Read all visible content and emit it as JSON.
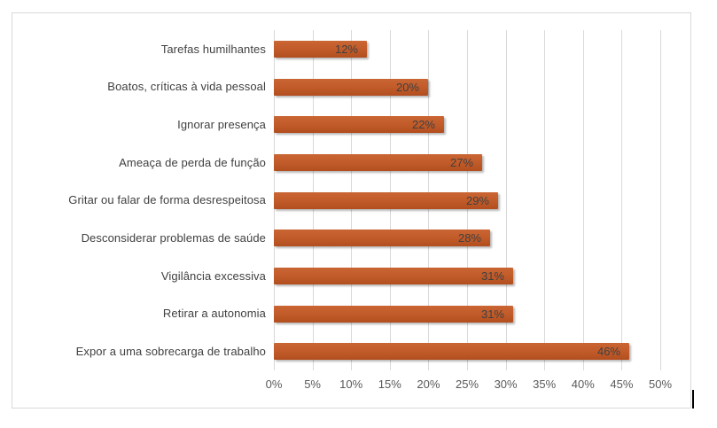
{
  "chart_data": {
    "type": "bar",
    "orientation": "horizontal",
    "title": "",
    "xlabel": "",
    "ylabel": "",
    "categories": [
      "Tarefas humilhantes",
      "Boatos, críticas à vida pessoal",
      "Ignorar presença",
      "Ameaça de perda de função",
      "Gritar ou falar de forma desrespeitosa",
      "Desconsiderar problemas de saúde",
      "Vigilância excessiva",
      "Retirar a autonomia",
      "Expor a uma sobrecarga de trabalho"
    ],
    "values": [
      12,
      20,
      22,
      27,
      29,
      28,
      31,
      31,
      46
    ],
    "data_labels": [
      "12%",
      "20%",
      "22%",
      "27%",
      "29%",
      "28%",
      "31%",
      "31%",
      "46%"
    ],
    "xlim": [
      0,
      50
    ],
    "x_tick_step": 5,
    "x_ticks": [
      "0%",
      "5%",
      "10%",
      "15%",
      "20%",
      "25%",
      "30%",
      "35%",
      "40%",
      "45%",
      "50%"
    ],
    "grid": true,
    "legend": false,
    "colors": {
      "bar_base": "#C05A28",
      "bar_gradient_top": "#CA6634",
      "bar_gradient_bottom": "#B24E1F",
      "gridline": "#D9D9D9",
      "frame_border": "#D9D9D9",
      "category_label": "#404040",
      "data_label": "#404040",
      "axis_label": "#595959",
      "background": "#FFFFFF"
    }
  }
}
